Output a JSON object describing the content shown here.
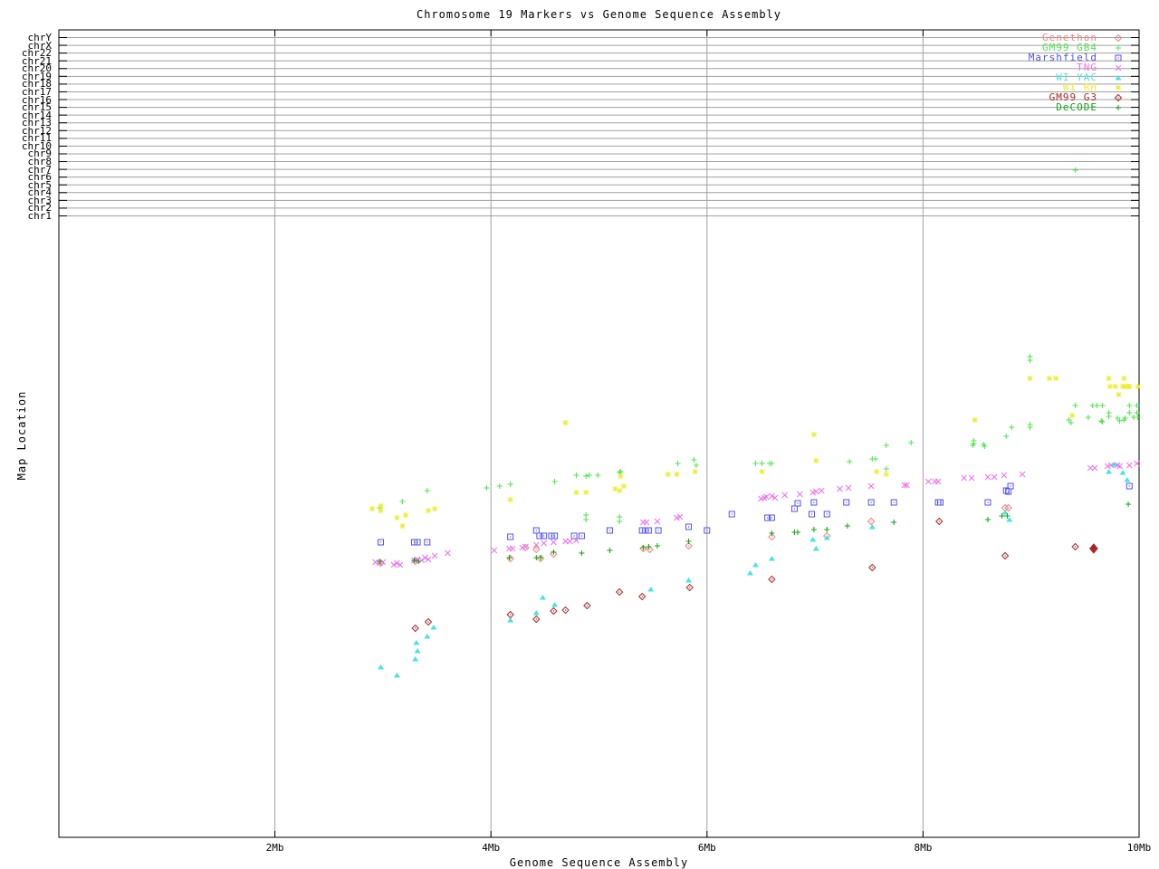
{
  "chart_data": {
    "type": "scatter",
    "title": "Chromosome 19 Markers vs Genome Sequence Assembly",
    "xlabel": "Genome Sequence Assembly",
    "ylabel": "Map Location",
    "x_range_mb": [
      0,
      10
    ],
    "x_ticks": [
      {
        "label": "2Mb",
        "mb": 2
      },
      {
        "label": "4Mb",
        "mb": 4
      },
      {
        "label": "6Mb",
        "mb": 6
      },
      {
        "label": "8Mb",
        "mb": 8
      },
      {
        "label": "10Mb",
        "mb": 10
      }
    ],
    "y_categories_top_to_bottom": [
      "chrY",
      "chrX",
      "chr22",
      "chr21",
      "chr20",
      "chr19",
      "chr18",
      "chr17",
      "chr16",
      "chr15",
      "chr14",
      "chr13",
      "chr12",
      "chr11",
      "chr10",
      "chr9",
      "chr8",
      "chr7",
      "chr6",
      "chr5",
      "chr4",
      "chr3",
      "chr2",
      "chr1"
    ],
    "y_note": "Marker map-location axis is unlabeled in the source plot; point y-values below are source-image screen pixels (top=0). Point x-values are Mb read from the x axis.",
    "grid": true,
    "legend_position": "top-right",
    "background": "#ffffff",
    "grid_color": "#a0a0a0",
    "axis_color": "#000000",
    "series": [
      {
        "name": "Genethon",
        "color": "#f08080",
        "marker": "diamond-dot",
        "points": [
          [
            2.98,
            622
          ],
          [
            3.3,
            620
          ],
          [
            4.18,
            617
          ],
          [
            4.32,
            605
          ],
          [
            4.42,
            607
          ],
          [
            4.46,
            617
          ],
          [
            4.58,
            612
          ],
          [
            5.41,
            606
          ],
          [
            5.47,
            607
          ],
          [
            5.83,
            603
          ],
          [
            6.6,
            593
          ],
          [
            7.11,
            592
          ],
          [
            7.52,
            576
          ],
          [
            8.76,
            561
          ],
          [
            8.79,
            561
          ]
        ]
      },
      {
        "name": "GM99 GB4",
        "color": "#4ce44c",
        "marker": "plus",
        "points": [
          [
            2.97,
            561
          ],
          [
            3.18,
            554
          ],
          [
            3.41,
            542
          ],
          [
            3.96,
            539
          ],
          [
            4.08,
            537
          ],
          [
            4.18,
            535
          ],
          [
            4.59,
            532
          ],
          [
            4.79,
            525
          ],
          [
            4.88,
            526
          ],
          [
            4.91,
            525
          ],
          [
            4.99,
            525
          ],
          [
            5.19,
            522
          ],
          [
            5.2,
            521
          ],
          [
            4.88,
            569
          ],
          [
            4.88,
            574
          ],
          [
            5.19,
            571
          ],
          [
            5.19,
            576
          ],
          [
            5.73,
            512
          ],
          [
            5.88,
            508
          ],
          [
            5.9,
            514
          ],
          [
            6.45,
            512
          ],
          [
            6.51,
            512
          ],
          [
            6.58,
            512
          ],
          [
            6.6,
            512
          ],
          [
            7.32,
            510
          ],
          [
            7.53,
            507
          ],
          [
            7.56,
            507
          ],
          [
            7.66,
            492
          ],
          [
            7.66,
            518
          ],
          [
            7.89,
            489
          ],
          [
            8.46,
            492
          ],
          [
            8.47,
            487
          ],
          [
            8.47,
            490
          ],
          [
            8.56,
            491
          ],
          [
            8.57,
            493
          ],
          [
            8.77,
            482
          ],
          [
            8.82,
            472
          ],
          [
            8.99,
            394
          ],
          [
            8.99,
            398
          ],
          [
            8.99,
            469
          ],
          [
            8.99,
            472
          ],
          [
            9.35,
            464
          ],
          [
            9.37,
            467
          ],
          [
            9.41,
            448
          ],
          [
            9.41,
            188
          ],
          [
            9.53,
            461
          ],
          [
            9.57,
            448
          ],
          [
            9.61,
            448
          ],
          [
            9.65,
            465
          ],
          [
            9.66,
            448
          ],
          [
            9.66,
            466
          ],
          [
            9.72,
            456
          ],
          [
            9.72,
            460
          ],
          [
            9.8,
            462
          ],
          [
            9.82,
            465
          ],
          [
            9.86,
            464
          ],
          [
            9.87,
            462
          ],
          [
            9.91,
            448
          ],
          [
            9.91,
            456
          ],
          [
            9.95,
            461
          ],
          [
            9.98,
            448
          ],
          [
            9.98,
            456
          ],
          [
            9.99,
            461
          ]
        ]
      },
      {
        "name": "Marshfield",
        "color": "#5151ef",
        "marker": "square-dot",
        "points": [
          [
            2.98,
            599
          ],
          [
            3.29,
            599
          ],
          [
            3.32,
            599
          ],
          [
            3.41,
            599
          ],
          [
            4.18,
            593
          ],
          [
            4.42,
            586
          ],
          [
            4.45,
            592
          ],
          [
            4.49,
            592
          ],
          [
            4.56,
            592
          ],
          [
            4.59,
            592
          ],
          [
            4.77,
            592
          ],
          [
            4.84,
            592
          ],
          [
            5.1,
            586
          ],
          [
            5.4,
            586
          ],
          [
            5.43,
            586
          ],
          [
            5.46,
            586
          ],
          [
            5.55,
            586
          ],
          [
            5.83,
            582
          ],
          [
            6.0,
            586
          ],
          [
            6.23,
            568
          ],
          [
            6.56,
            572
          ],
          [
            6.6,
            572
          ],
          [
            6.81,
            562
          ],
          [
            6.84,
            556
          ],
          [
            6.97,
            568
          ],
          [
            6.99,
            555
          ],
          [
            7.11,
            568
          ],
          [
            7.29,
            555
          ],
          [
            7.52,
            555
          ],
          [
            7.73,
            555
          ],
          [
            8.14,
            555
          ],
          [
            8.16,
            555
          ],
          [
            8.6,
            555
          ],
          [
            8.77,
            542
          ],
          [
            8.79,
            543
          ],
          [
            8.81,
            537
          ],
          [
            9.91,
            537
          ]
        ]
      },
      {
        "name": "TNG",
        "color": "#ee6eee",
        "marker": "cross",
        "points": [
          [
            2.93,
            621
          ],
          [
            2.97,
            622
          ],
          [
            3.0,
            621
          ],
          [
            3.1,
            624
          ],
          [
            3.13,
            622
          ],
          [
            3.16,
            624
          ],
          [
            3.29,
            619
          ],
          [
            3.32,
            618
          ],
          [
            3.36,
            619
          ],
          [
            3.39,
            616
          ],
          [
            3.42,
            618
          ],
          [
            3.48,
            614
          ],
          [
            3.6,
            611
          ],
          [
            4.03,
            608
          ],
          [
            4.17,
            606
          ],
          [
            4.2,
            606
          ],
          [
            4.29,
            605
          ],
          [
            4.32,
            604
          ],
          [
            4.42,
            602
          ],
          [
            4.49,
            600
          ],
          [
            4.58,
            599
          ],
          [
            4.69,
            598
          ],
          [
            4.73,
            598
          ],
          [
            4.79,
            597
          ],
          [
            5.41,
            577
          ],
          [
            5.44,
            577
          ],
          [
            5.54,
            576
          ],
          [
            5.72,
            572
          ],
          [
            5.75,
            571
          ],
          [
            6.5,
            551
          ],
          [
            6.53,
            550
          ],
          [
            6.55,
            549
          ],
          [
            6.6,
            548
          ],
          [
            6.63,
            550
          ],
          [
            6.72,
            547
          ],
          [
            6.86,
            546
          ],
          [
            6.98,
            544
          ],
          [
            7.01,
            543
          ],
          [
            7.06,
            542
          ],
          [
            7.23,
            540
          ],
          [
            7.31,
            539
          ],
          [
            7.52,
            537
          ],
          [
            7.83,
            536
          ],
          [
            7.85,
            536
          ],
          [
            8.05,
            532
          ],
          [
            8.11,
            532
          ],
          [
            8.14,
            532
          ],
          [
            8.38,
            528
          ],
          [
            8.45,
            528
          ],
          [
            8.6,
            527
          ],
          [
            8.66,
            527
          ],
          [
            8.75,
            525
          ],
          [
            8.92,
            524
          ],
          [
            9.55,
            517
          ],
          [
            9.59,
            517
          ],
          [
            9.71,
            515
          ],
          [
            9.74,
            514
          ],
          [
            9.8,
            514
          ],
          [
            9.82,
            515
          ],
          [
            9.91,
            514
          ],
          [
            9.98,
            512
          ]
        ]
      },
      {
        "name": "WI YAC",
        "color": "#4ae2e2",
        "marker": "triangle",
        "points": [
          [
            2.98,
            737
          ],
          [
            3.13,
            746
          ],
          [
            3.3,
            728
          ],
          [
            3.31,
            710
          ],
          [
            3.32,
            719
          ],
          [
            3.41,
            703
          ],
          [
            3.47,
            693
          ],
          [
            4.18,
            685
          ],
          [
            4.42,
            677
          ],
          [
            4.48,
            660
          ],
          [
            4.59,
            668
          ],
          [
            5.48,
            651
          ],
          [
            5.83,
            641
          ],
          [
            6.4,
            633
          ],
          [
            6.45,
            624
          ],
          [
            6.6,
            617
          ],
          [
            6.98,
            596
          ],
          [
            7.01,
            606
          ],
          [
            7.11,
            594
          ],
          [
            7.53,
            582
          ],
          [
            8.76,
            566
          ],
          [
            8.8,
            574
          ],
          [
            9.72,
            521
          ],
          [
            9.77,
            513
          ],
          [
            9.85,
            522
          ],
          [
            9.89,
            530
          ]
        ]
      },
      {
        "name": "WI RH",
        "color": "#eded2e",
        "marker": "star",
        "points": [
          [
            2.9,
            562
          ],
          [
            2.98,
            559
          ],
          [
            2.98,
            564
          ],
          [
            3.13,
            572
          ],
          [
            3.18,
            581
          ],
          [
            3.21,
            569
          ],
          [
            3.42,
            564
          ],
          [
            3.48,
            562
          ],
          [
            4.18,
            552
          ],
          [
            4.69,
            467
          ],
          [
            4.79,
            544
          ],
          [
            4.88,
            544
          ],
          [
            5.15,
            540
          ],
          [
            5.19,
            542
          ],
          [
            5.2,
            526
          ],
          [
            5.23,
            537
          ],
          [
            5.64,
            524
          ],
          [
            5.72,
            524
          ],
          [
            5.89,
            521
          ],
          [
            6.51,
            521
          ],
          [
            6.99,
            480
          ],
          [
            7.01,
            509
          ],
          [
            7.57,
            521
          ],
          [
            7.66,
            524
          ],
          [
            8.48,
            464
          ],
          [
            8.99,
            418
          ],
          [
            9.17,
            418
          ],
          [
            9.23,
            418
          ],
          [
            9.38,
            459
          ],
          [
            9.72,
            418
          ],
          [
            9.73,
            427
          ],
          [
            9.78,
            427
          ],
          [
            9.81,
            436
          ],
          [
            9.85,
            427
          ],
          [
            9.86,
            418
          ],
          [
            9.87,
            427
          ],
          [
            9.9,
            427
          ],
          [
            9.91,
            427
          ],
          [
            9.99,
            427
          ]
        ]
      },
      {
        "name": "GM99 G3",
        "color": "#a32929",
        "marker": "diamond-dot",
        "points": [
          [
            3.3,
            694
          ],
          [
            3.42,
            687
          ],
          [
            4.18,
            679
          ],
          [
            4.42,
            684
          ],
          [
            4.58,
            675
          ],
          [
            4.69,
            674
          ],
          [
            4.89,
            669
          ],
          [
            5.19,
            654
          ],
          [
            5.4,
            659
          ],
          [
            5.84,
            649
          ],
          [
            6.6,
            640
          ],
          [
            7.53,
            627
          ],
          [
            8.15,
            576
          ],
          [
            8.76,
            614
          ],
          [
            9.41,
            604
          ],
          [
            9.58,
            606,
            1
          ]
        ]
      },
      {
        "name": "DeCODE",
        "color": "#10a310",
        "marker": "plus",
        "points": [
          [
            2.97,
            620
          ],
          [
            3.29,
            619
          ],
          [
            3.33,
            620
          ],
          [
            4.17,
            616
          ],
          [
            4.42,
            616
          ],
          [
            4.46,
            616
          ],
          [
            4.58,
            610
          ],
          [
            4.84,
            611
          ],
          [
            5.1,
            608
          ],
          [
            5.41,
            605
          ],
          [
            5.46,
            604
          ],
          [
            5.54,
            603
          ],
          [
            5.83,
            598
          ],
          [
            6.6,
            589
          ],
          [
            6.81,
            588
          ],
          [
            6.84,
            588
          ],
          [
            6.99,
            585
          ],
          [
            7.11,
            585
          ],
          [
            7.3,
            581
          ],
          [
            7.73,
            577
          ],
          [
            8.6,
            574
          ],
          [
            8.73,
            570
          ],
          [
            8.78,
            570
          ],
          [
            9.9,
            557
          ]
        ]
      }
    ]
  }
}
